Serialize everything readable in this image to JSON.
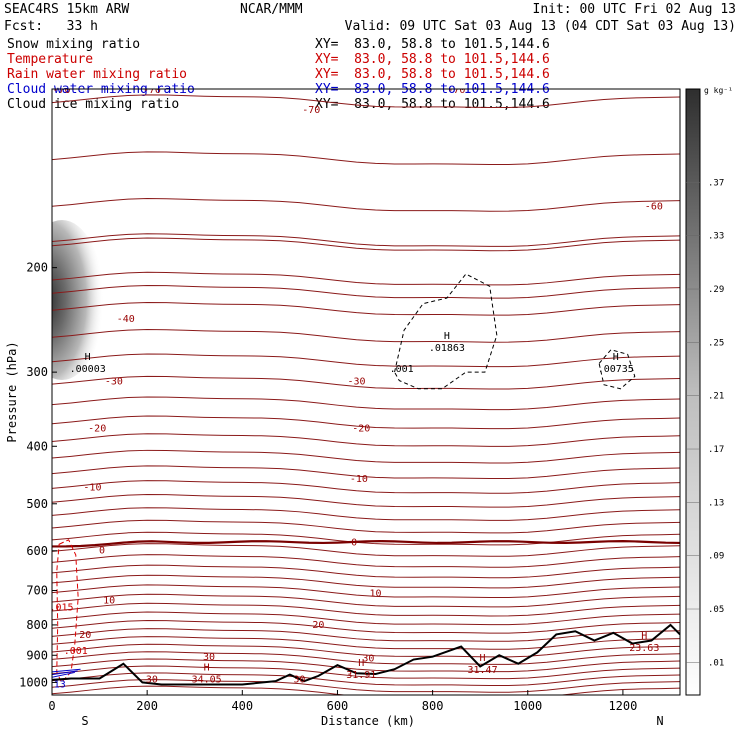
{
  "header": {
    "model": "SEAC4RS 15km ARW",
    "center": "NCAR/MMM",
    "init": "Init: 00 UTC Fri 02 Aug 13",
    "fcst": "Fcst:   33 h",
    "valid": "Valid: 09 UTC Sat 03 Aug 13 (04 CDT Sat 03 Aug 13)",
    "fields": [
      {
        "label": "Snow mixing ratio",
        "xy": "XY=  83.0, 58.8 to 101.5,144.6",
        "color": "#000000"
      },
      {
        "label": "Temperature",
        "xy": "XY=  83.0, 58.8 to 101.5,144.6",
        "color": "#cc0000"
      },
      {
        "label": "Rain water mixing ratio",
        "xy": "XY=  83.0, 58.8 to 101.5,144.6",
        "color": "#cc0000"
      },
      {
        "label": "Cloud water mixing ratio",
        "xy": "XY=  83.0, 58.8 to 101.5,144.6",
        "color": "#0000cc"
      },
      {
        "label": "Cloud ice mixing ratio",
        "xy": "XY=  83.0, 58.8 to 101.5,144.6",
        "color": "#000000"
      }
    ]
  },
  "chart_data": {
    "type": "contour",
    "xlabel": "Distance (km)",
    "ylabel": "Pressure (hPa)",
    "xlim": [
      0,
      1320
    ],
    "ylim": [
      1050,
      100
    ],
    "yscale": "log",
    "x_ticks": [
      0,
      200,
      400,
      600,
      800,
      1000,
      1200
    ],
    "y_ticks": [
      200,
      300,
      400,
      500,
      600,
      700,
      800,
      900,
      1000
    ],
    "x_end_labels": {
      "left": "S",
      "right": "N"
    },
    "colorbar": {
      "unit": "g kg⁻¹",
      "ticks": [
        ".01",
        ".05",
        ".09",
        ".13",
        ".17",
        ".21",
        ".25",
        ".29",
        ".33",
        ".37"
      ]
    },
    "isotherm_levels": [
      -70,
      -60,
      -50,
      -40,
      -30,
      -20,
      -10,
      0,
      10,
      20,
      30
    ],
    "isotherm_labels": [
      {
        "text": "-70",
        "x": 20,
        "p": 100
      },
      {
        "text": "-70",
        "x": 210,
        "p": 100
      },
      {
        "text": "-70",
        "x": 545,
        "p": 108
      },
      {
        "text": "-70",
        "x": 850,
        "p": 100
      },
      {
        "text": "-60",
        "x": 1265,
        "p": 157
      },
      {
        "text": "-40",
        "x": 155,
        "p": 243
      },
      {
        "text": "-30",
        "x": 130,
        "p": 310
      },
      {
        "text": "-30",
        "x": 640,
        "p": 310
      },
      {
        "text": "-20",
        "x": 95,
        "p": 372
      },
      {
        "text": "-20",
        "x": 650,
        "p": 372
      },
      {
        "text": "-10",
        "x": 85,
        "p": 468
      },
      {
        "text": "-10",
        "x": 645,
        "p": 452
      },
      {
        "text": "0",
        "x": 105,
        "p": 597
      },
      {
        "text": "0",
        "x": 635,
        "p": 579
      },
      {
        "text": "10",
        "x": 120,
        "p": 725
      },
      {
        "text": "10",
        "x": 680,
        "p": 705
      },
      {
        "text": "20",
        "x": 70,
        "p": 828
      },
      {
        "text": "20",
        "x": 560,
        "p": 797
      },
      {
        "text": "30",
        "x": 330,
        "p": 903
      },
      {
        "text": "30",
        "x": 665,
        "p": 907
      },
      {
        "text": "30",
        "x": 210,
        "p": 985
      },
      {
        "text": "30",
        "x": 520,
        "p": 985
      }
    ],
    "highs": [
      {
        "label": "H",
        "value": ".00003",
        "x": 75,
        "p": 293,
        "color": "#000000"
      },
      {
        "label": "H",
        "value": ".01863",
        "x": 830,
        "p": 270,
        "color": "#000000"
      },
      {
        "label": "H",
        "value": ".00735",
        "x": 1185,
        "p": 293,
        "color": "#000000"
      },
      {
        "label": "H",
        "value": "34.05",
        "x": 325,
        "p": 978,
        "color": "#990000"
      },
      {
        "label": "H",
        "value": "31.91",
        "x": 650,
        "p": 960,
        "color": "#990000"
      },
      {
        "label": "H",
        "value": "31.47",
        "x": 905,
        "p": 942,
        "color": "#990000"
      },
      {
        "label": "H",
        "value": "23.63",
        "x": 1245,
        "p": 865,
        "color": "#990000"
      }
    ],
    "contour_labels": [
      {
        "text": ".001",
        "x": 735,
        "p": 295,
        "color": "#000000"
      },
      {
        "text": ".001",
        "x": 50,
        "p": 882,
        "color": "#cc0000"
      },
      {
        "text": ".015",
        "x": 20,
        "p": 745,
        "color": "#cc0000"
      },
      {
        "text": ".13",
        "x": 10,
        "p": 1005,
        "color": "#0000cc"
      }
    ]
  }
}
